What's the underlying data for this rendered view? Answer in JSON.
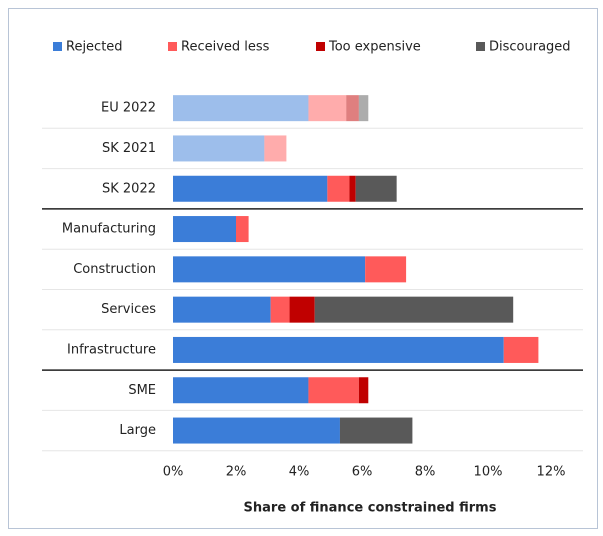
{
  "chart_data": {
    "type": "bar",
    "orientation": "horizontal",
    "stacked": true,
    "x_label": "Share of finance constrained firms",
    "categories": [
      "EU 2022",
      "SK 2021",
      "SK 2022",
      "Manufacturing",
      "Construction",
      "Services",
      "Infrastructure",
      "SME",
      "Large"
    ],
    "faded": [
      true,
      true,
      false,
      false,
      false,
      false,
      false,
      false,
      false
    ],
    "series": [
      {
        "name": "Rejected",
        "color": "#3b7dd8",
        "values": [
          4.3,
          2.9,
          4.9,
          2.0,
          6.1,
          3.1,
          10.5,
          4.3,
          5.3
        ]
      },
      {
        "name": "Received less",
        "color": "#ff5a5a",
        "values": [
          1.2,
          0.7,
          0.7,
          0.4,
          1.3,
          0.6,
          1.1,
          1.6,
          0
        ]
      },
      {
        "name": "Too expensive",
        "color": "#c00000",
        "values": [
          0.4,
          0,
          0.2,
          0,
          0,
          0.8,
          0,
          0.3,
          0
        ]
      },
      {
        "name": "Discouraged",
        "color": "#595959",
        "values": [
          0.3,
          0,
          1.3,
          0,
          0,
          6.3,
          0,
          0,
          2.3
        ]
      }
    ],
    "xlim": [
      0,
      12
    ],
    "xticks": [
      {
        "value": 0,
        "label": "0%"
      },
      {
        "value": 2,
        "label": "2%"
      },
      {
        "value": 4,
        "label": "4%"
      },
      {
        "value": 6,
        "label": "6%"
      },
      {
        "value": 8,
        "label": "8%"
      },
      {
        "value": 10,
        "label": "10%"
      },
      {
        "value": 12,
        "label": "12%"
      }
    ],
    "legend": "top"
  }
}
